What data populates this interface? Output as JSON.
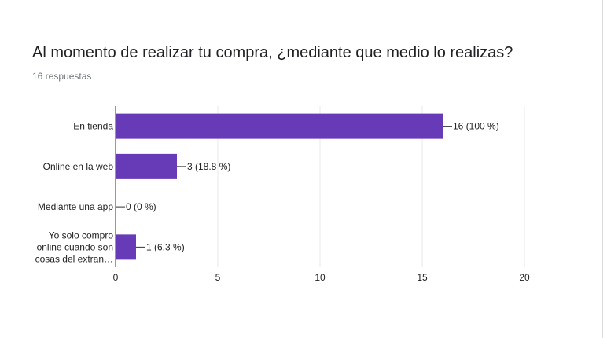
{
  "question": {
    "title": "Al momento de realizar tu compra, ¿mediante que medio lo realizas?",
    "responses": "16 respuestas"
  },
  "colors": {
    "bar": "#673ab7",
    "grid": "#e8e8e8",
    "axis": "#333333",
    "text": "#222222"
  },
  "chart_data": {
    "type": "bar",
    "orientation": "horizontal",
    "categories": [
      [
        "En tienda"
      ],
      [
        "Online en la web"
      ],
      [
        "Mediante una app"
      ],
      [
        "Yo solo compro",
        "online cuando son",
        "cosas del extran…"
      ]
    ],
    "values": [
      16,
      3,
      0,
      1
    ],
    "data_labels": [
      "16 (100 %)",
      "3 (18.8 %)",
      "0 (0 %)",
      "1 (6.3 %)"
    ],
    "xlim": [
      0,
      20
    ],
    "xticks": [
      0,
      5,
      10,
      15,
      20
    ],
    "grid": true,
    "legend": "none"
  }
}
